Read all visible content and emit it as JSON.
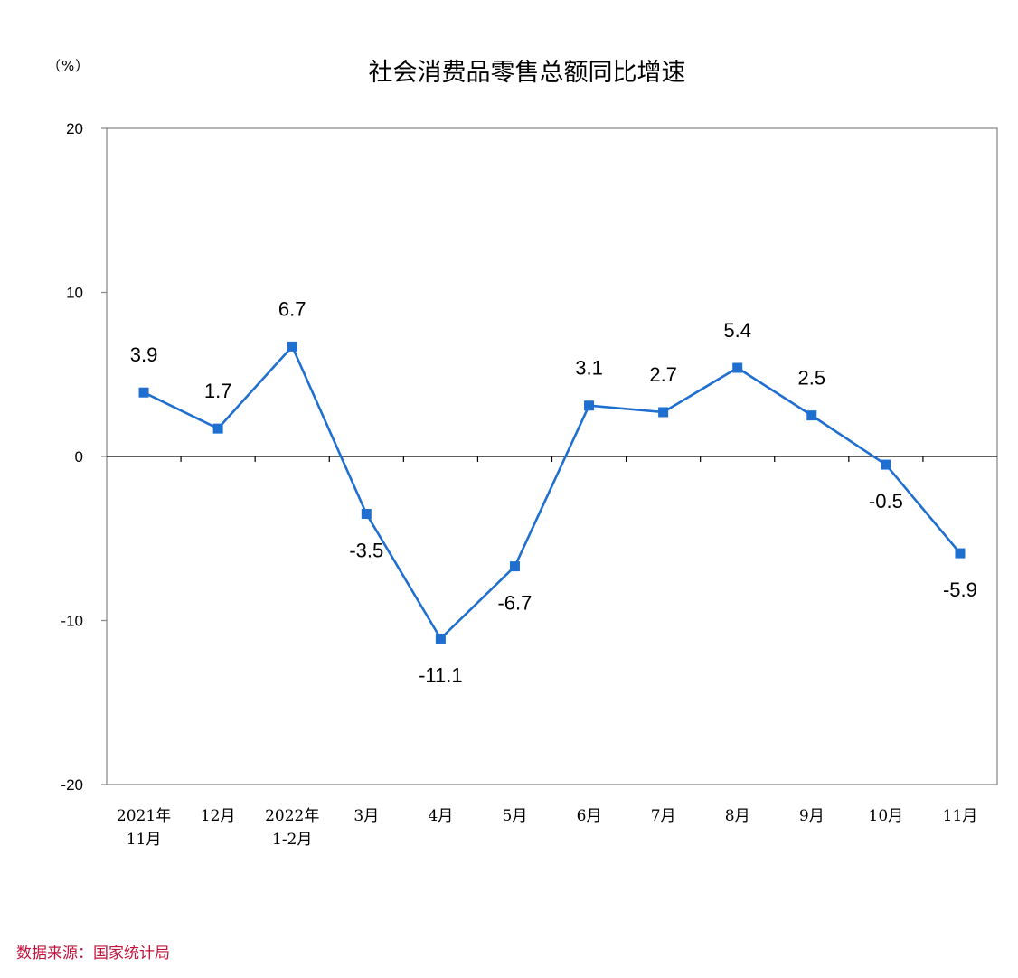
{
  "chart_data": {
    "type": "line",
    "title": "社会消费品零售总额同比增速",
    "unit_label": "（%）",
    "categories": [
      [
        "2021年",
        "11月"
      ],
      [
        "12月"
      ],
      [
        "2022年",
        "1-2月"
      ],
      [
        "3月"
      ],
      [
        "4月"
      ],
      [
        "5月"
      ],
      [
        "6月"
      ],
      [
        "7月"
      ],
      [
        "8月"
      ],
      [
        "9月"
      ],
      [
        "10月"
      ],
      [
        "11月"
      ]
    ],
    "values": [
      3.9,
      1.7,
      6.7,
      -3.5,
      -11.1,
      -6.7,
      3.1,
      2.7,
      5.4,
      2.5,
      -0.5,
      -5.9
    ],
    "value_labels": [
      "3.9",
      "1.7",
      "6.7",
      "-3.5",
      "-11.1",
      "-6.7",
      "3.1",
      "2.7",
      "5.4",
      "2.5",
      "-0.5",
      "-5.9"
    ],
    "label_above": [
      true,
      true,
      true,
      false,
      false,
      false,
      true,
      true,
      true,
      true,
      false,
      false
    ],
    "ylim": [
      -20,
      20
    ],
    "yticks": [
      20,
      10,
      0,
      -10,
      -20
    ],
    "ytick_labels": [
      "20",
      "10",
      "0",
      "-10",
      "-20"
    ],
    "line_color": "#1f6fd1",
    "grid": false,
    "legend": "none"
  },
  "source": "数据来源：国家统计局"
}
